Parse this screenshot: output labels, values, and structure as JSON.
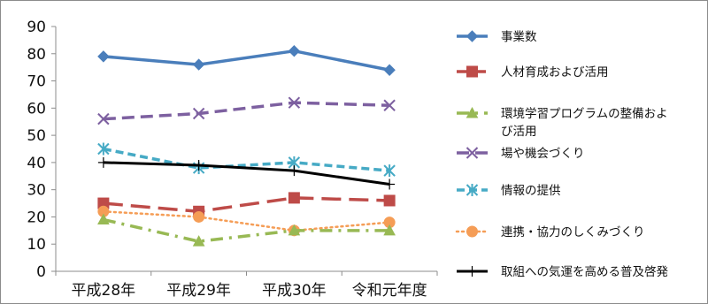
{
  "chart_data": {
    "type": "line",
    "categories": [
      "平成28年",
      "平成29年",
      "平成30年",
      "令和元年度"
    ],
    "ylim": [
      0,
      90
    ],
    "yticks": [
      0,
      10,
      20,
      30,
      40,
      50,
      60,
      70,
      80,
      90
    ],
    "grid": false,
    "legend_position": "right",
    "series": [
      {
        "name": "事業数",
        "values": [
          79,
          76,
          81,
          74
        ],
        "color": "#4a7ebb",
        "dash": "solid",
        "marker": "diamond"
      },
      {
        "name": "人材育成および活用",
        "values": [
          25,
          22,
          27,
          26
        ],
        "color": "#be4b48",
        "dash": "longdash",
        "marker": "square"
      },
      {
        "name": "環境学習プログラムの整備およ\nび活用",
        "values": [
          19,
          11,
          15,
          15
        ],
        "color": "#98b954",
        "dash": "dashdot",
        "marker": "triangle"
      },
      {
        "name": "場や機会づくり",
        "values": [
          56,
          58,
          62,
          61
        ],
        "color": "#7d60a0",
        "dash": "dash",
        "marker": "x"
      },
      {
        "name": "情報の提供",
        "values": [
          45,
          38,
          40,
          37
        ],
        "color": "#46aac5",
        "dash": "shortdash",
        "marker": "star"
      },
      {
        "name": "連携・協力のしくみづくり",
        "values": [
          22,
          20,
          15,
          18
        ],
        "color": "#f59d56",
        "dash": "dot",
        "marker": "circle"
      },
      {
        "name": "取組への気運を高める普及啓発",
        "values": [
          40,
          39,
          37,
          32
        ],
        "color": "#000000",
        "dash": "solid",
        "marker": "plus"
      }
    ]
  }
}
